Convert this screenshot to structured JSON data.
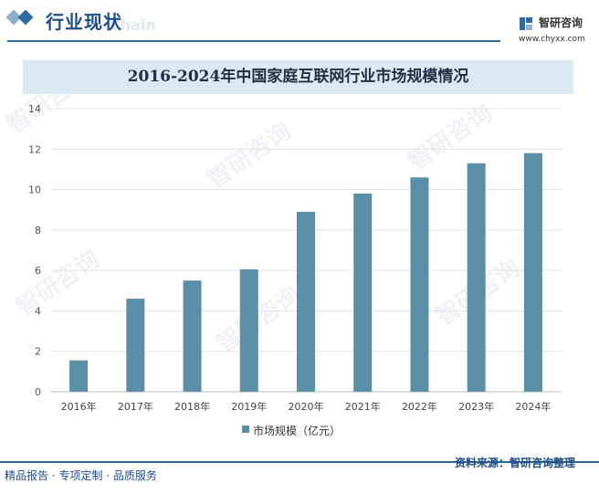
{
  "header": {
    "section_title": "行业现状",
    "section_watermark": "Chain",
    "brand_name": "智研咨询",
    "brand_url": "www.chyxx.com"
  },
  "watermark_text": "智研咨询",
  "chart_data": {
    "type": "bar",
    "title": "2016-2024年中国家庭互联网行业市场规模情况",
    "categories": [
      "2016年",
      "2017年",
      "2018年",
      "2019年",
      "2020年",
      "2021年",
      "2022年",
      "2023年",
      "2024年"
    ],
    "series": [
      {
        "name": "市场规模（亿元）",
        "values": [
          1.55,
          4.6,
          5.5,
          6.05,
          8.9,
          9.8,
          10.6,
          11.3,
          11.8
        ]
      }
    ],
    "ylim": [
      0,
      14
    ],
    "yticks": [
      0,
      2,
      4,
      6,
      8,
      10,
      12,
      14
    ],
    "grid": true,
    "legend_position": "bottom",
    "bar_color": "#5b8fa8"
  },
  "footer": {
    "left_text": "精品报告 · 专项定制 · 品质服务",
    "right_text": "资料来源：智研咨询整理"
  },
  "colors": {
    "accent": "#2f6aa0",
    "title_band": "#dce9f3"
  }
}
